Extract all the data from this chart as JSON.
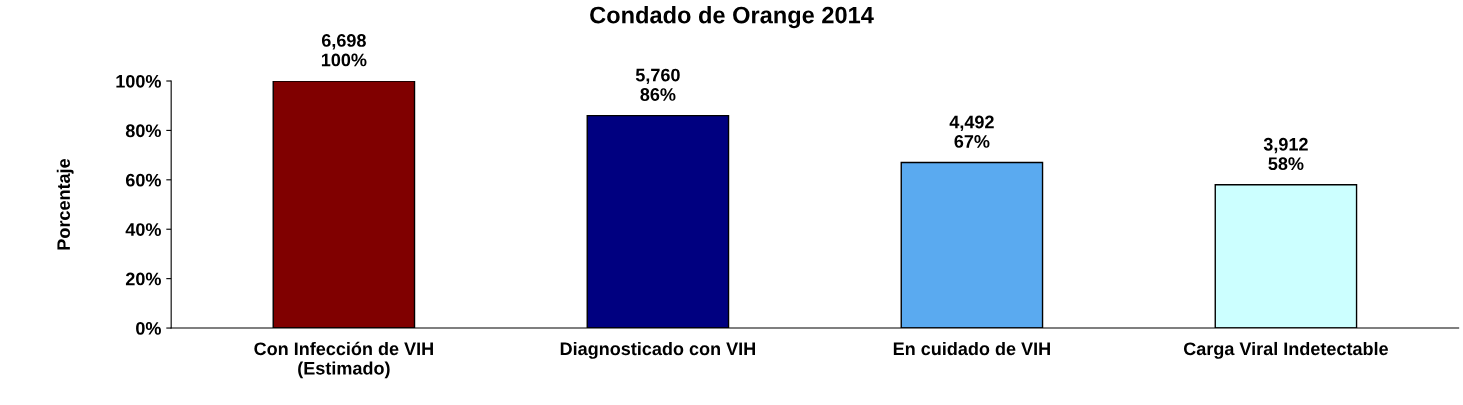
{
  "chart_data": {
    "type": "bar",
    "title": "Condado de Orange 2014",
    "ylabel": "Porcentaje",
    "categories": [
      "Con Infección de VIH\n(Estimado)",
      "Diagnosticado con VIH",
      "En cuidado de VIH",
      "Carga Viral Indetectable"
    ],
    "values": [
      100,
      86,
      67,
      58
    ],
    "colors": [
      "#800000",
      "#000080",
      "#5aaaf0",
      "#ccffff"
    ],
    "value_labels": [
      "6,698\n100%",
      "5,760\n86%",
      "4,492\n67%",
      "3,912\n58%"
    ],
    "ylim": [
      0,
      100
    ],
    "yticks": [
      {
        "value": 0,
        "label": "0%"
      },
      {
        "value": 20,
        "label": "20%"
      },
      {
        "value": 40,
        "label": "40%"
      },
      {
        "value": 60,
        "label": "60%"
      },
      {
        "value": 80,
        "label": "80%"
      },
      {
        "value": 100,
        "label": "100%"
      }
    ],
    "grid": false,
    "legend": false
  }
}
